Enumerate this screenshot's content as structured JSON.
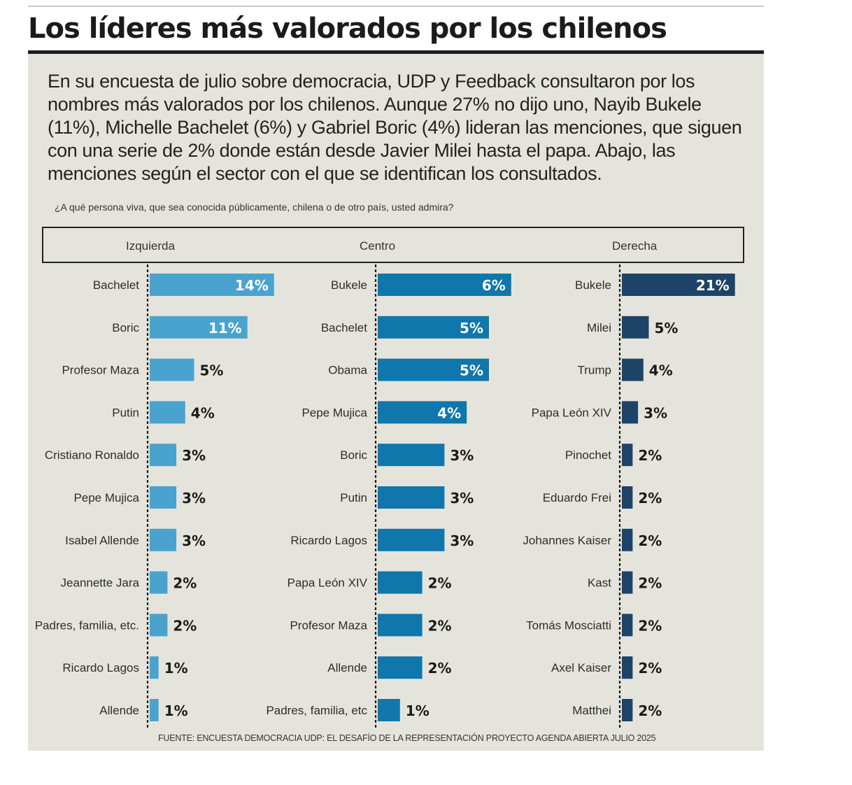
{
  "title": "Los líderes más valorados por los chilenos",
  "intro": "En su encuesta de julio sobre democracia, UDP y Feedback consultaron por los nombres más valorados por los chilenos. Aunque 27% no dijo uno, Nayib Bukele (11%), Michelle Bachelet (6%) y Gabriel Boric (4%) lideran las menciones, que siguen con una serie de 2% donde están desde Javier Milei hasta el papa. Abajo, las menciones según el sector con el que se identifican los consultados.",
  "question": "¿A qué persona viva, que sea conocida públicamente, chilena o de otro país, usted admira?",
  "footer": "FUENTE: ENCUESTA DEMOCRACIA UDP: EL DESAFÍO DE LA REPRESENTACIÓN PROYECTO AGENDA ABIERTA JULIO 2025",
  "chart_data": [
    {
      "type": "bar",
      "title": "Izquierda",
      "color": "#4aa3cf",
      "categories": [
        "Bachelet",
        "Boric",
        "Profesor Maza",
        "Putin",
        "Cristiano Ronaldo",
        "Pepe Mujica",
        "Isabel Allende",
        "Jeannette Jara",
        "Padres, familia, etc.",
        "Ricardo Lagos",
        "Allende"
      ],
      "values": [
        14,
        11,
        5,
        4,
        3,
        3,
        3,
        2,
        2,
        1,
        1
      ],
      "unit": "%"
    },
    {
      "type": "bar",
      "title": "Centro",
      "color": "#0f77ab",
      "categories": [
        "Bukele",
        "Bachelet",
        "Obama",
        "Pepe Mujica",
        "Boric",
        "Putin",
        "Ricardo Lagos",
        "Papa León XIV",
        "Profesor Maza",
        "Allende",
        "Padres, familia, etc"
      ],
      "values": [
        6,
        5,
        5,
        4,
        3,
        3,
        3,
        2,
        2,
        2,
        1
      ],
      "unit": "%"
    },
    {
      "type": "bar",
      "title": "Derecha",
      "color": "#1d4468",
      "categories": [
        "Bukele",
        "Milei",
        "Trump",
        "Papa León XIV",
        "Pinochet",
        "Eduardo Frei",
        "Johannes Kaiser",
        "Kast",
        "Tomás Mosciatti",
        "Axel Kaiser",
        "Matthei"
      ],
      "values": [
        21,
        5,
        4,
        3,
        2,
        2,
        2,
        2,
        2,
        2,
        2
      ],
      "unit": "%"
    }
  ]
}
